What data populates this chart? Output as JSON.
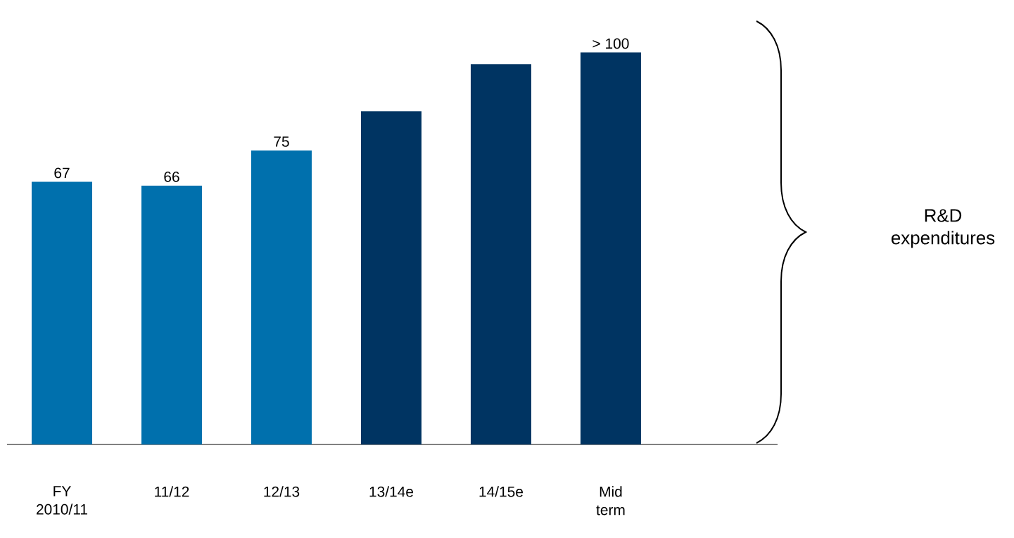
{
  "chart_data": {
    "type": "bar",
    "categories": [
      "FY 2010/11",
      "11/12",
      "12/13",
      "13/14e",
      "14/15e",
      "Mid term"
    ],
    "values": [
      67,
      66,
      75,
      85,
      97,
      100
    ],
    "colors": [
      "#0070ad",
      "#0070ad",
      "#0070ad",
      "#003462",
      "#003462",
      "#003462"
    ],
    "value_labels": [
      "67",
      "66",
      "75",
      null,
      null,
      "> 100"
    ],
    "annotations": [
      "R&D expenditures"
    ]
  }
}
